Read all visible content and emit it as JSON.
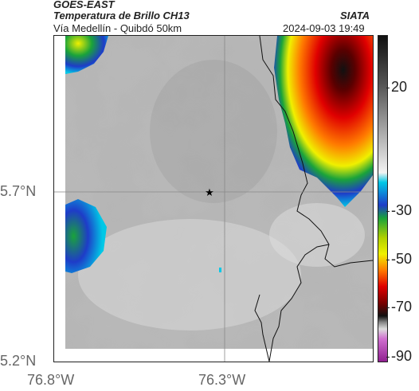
{
  "header": {
    "satellite": "GOES-EAST",
    "product": "Temperatura de Brillo CH13",
    "region": "Vía Medellín - Quibdó 50km",
    "agency": "SIATA",
    "datetime": "2024-09-03 19:49"
  },
  "map": {
    "lat_ticks": [
      "5.7°N",
      "5.2°N"
    ],
    "lon_ticks": [
      "76.8°W",
      "76.3°W"
    ],
    "marker": "star-marker"
  },
  "colorbar": {
    "ticks": [
      "20",
      "-30",
      "-50",
      "-70",
      "-90"
    ],
    "colors": {
      "warm_gray": "#bdbdbd",
      "cyan": "#00c8e6",
      "blue": "#1e3cc8",
      "green": "#1aa33a",
      "yellow": "#f0f000",
      "orange": "#ff7a00",
      "red": "#e00000",
      "dark_red": "#7a0000",
      "black": "#111111",
      "magenta": "#c040c0"
    }
  }
}
